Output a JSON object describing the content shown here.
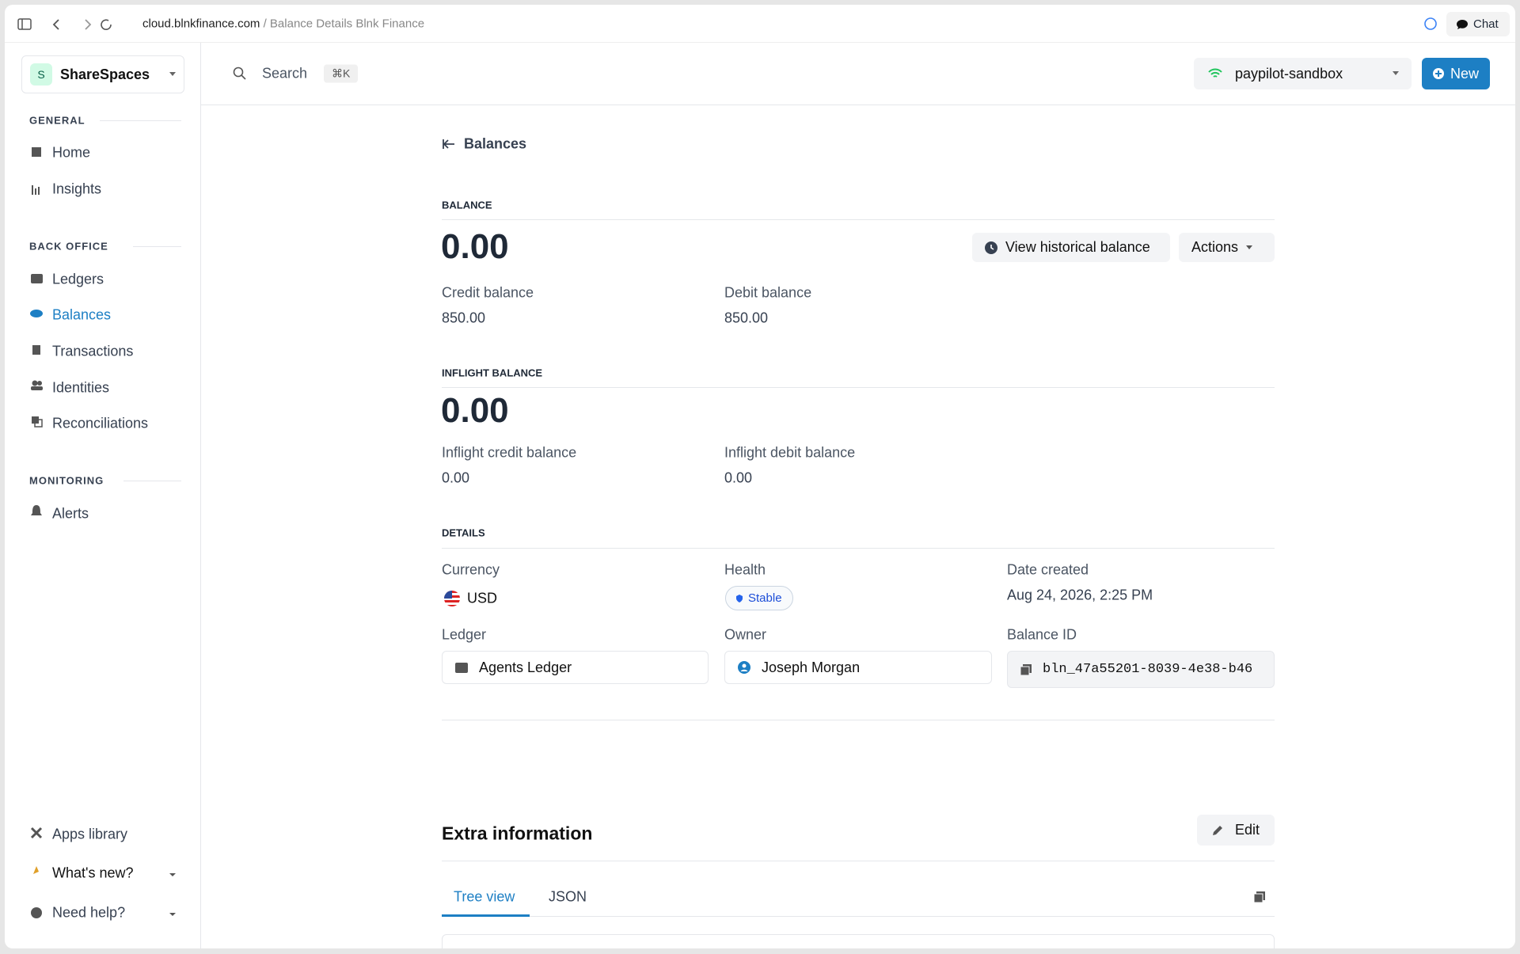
{
  "browser": {
    "url": "cloud.blnkfinance.com",
    "page_title": "/ Balance Details Blnk Finance",
    "chat": "Chat"
  },
  "sidebar": {
    "workspace_initial": "S",
    "workspace": "ShareSpaces",
    "sections": [
      {
        "title": "GENERAL",
        "items": [
          "Home",
          "Insights"
        ]
      },
      {
        "title": "BACK OFFICE",
        "items": [
          "Ledgers",
          "Balances",
          "Transactions",
          "Identities",
          "Reconciliations"
        ]
      },
      {
        "title": "MONITORING",
        "items": [
          "Alerts"
        ]
      }
    ],
    "footer": [
      "Apps library",
      "What's new?",
      "Need help?"
    ]
  },
  "header": {
    "search": "Search",
    "shortcut": "⌘K",
    "environment": "paypilot-sandbox",
    "new_button": "New"
  },
  "back_link": "Balances",
  "balance": {
    "title": "BALANCE",
    "amount": "0.00",
    "view_historical": "View historical balance",
    "actions": "Actions",
    "credit_label": "Credit balance",
    "credit_value": "850.00",
    "debit_label": "Debit balance",
    "debit_value": "850.00"
  },
  "inflight": {
    "title": "INFLIGHT BALANCE",
    "amount": "0.00",
    "credit_label": "Inflight credit balance",
    "credit_value": "0.00",
    "debit_label": "Inflight debit balance",
    "debit_value": "0.00"
  },
  "details": {
    "title": "DETAILS",
    "currency_label": "Currency",
    "currency": "USD",
    "health_label": "Health",
    "health": "Stable",
    "date_label": "Date created",
    "date": "Aug 24, 2026, 2:25 PM",
    "ledger_label": "Ledger",
    "ledger": "Agents Ledger",
    "owner_label": "Owner",
    "owner": "Joseph Morgan",
    "id_label": "Balance ID",
    "id": "bln_47a55201-8039-4e38-b46"
  },
  "extra": {
    "title": "Extra information",
    "edit": "Edit",
    "tabs": [
      "Tree view",
      "JSON"
    ]
  }
}
